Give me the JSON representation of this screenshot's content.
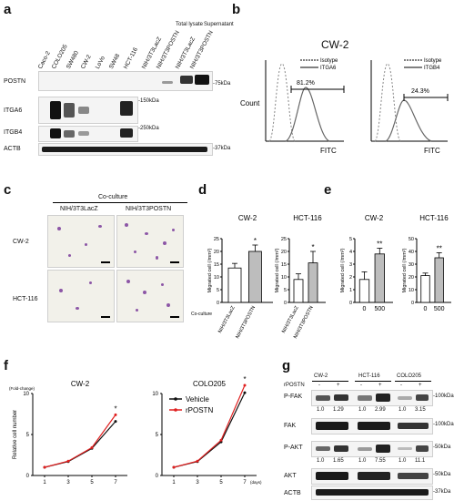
{
  "panels": {
    "a": "a",
    "b": "b",
    "c": "c",
    "d": "d",
    "e": "e",
    "f": "f",
    "g": "g"
  },
  "panel_a": {
    "lanes": [
      "Caco-2",
      "COLO205",
      "SW480",
      "CW-2",
      "LoVo",
      "SW48",
      "HCT-116",
      "NIH/3T3LacZ",
      "NIH/3T3POSTN",
      "NIH/3T3LacZ",
      "NIH/3T3POSTN"
    ],
    "group_labels": [
      "Total lysate",
      "Supernatant"
    ],
    "rows": [
      "POSTN",
      "ITGA6",
      "ITGB4",
      "ACTB"
    ],
    "markers": [
      "-75kDa",
      "-150kDa",
      "-250kDa",
      "-37kDa"
    ]
  },
  "panel_b": {
    "title": "CW-2",
    "ylabel": "Count",
    "xlabel": "FITC",
    "plots": [
      {
        "legend": [
          "Isotype",
          "ITGA6"
        ],
        "gate_pct": "81.2%"
      },
      {
        "legend": [
          "Isotype",
          "ITGB4"
        ],
        "gate_pct": "24.3%"
      }
    ]
  },
  "panel_c": {
    "header": "Co-culture",
    "cols": [
      "NIH/3T3LacZ",
      "NIH/3T3POSTN"
    ],
    "rows": [
      "CW-2",
      "HCT-116"
    ]
  },
  "chart_data": [
    {
      "type": "bar",
      "panel": "d",
      "title": "CW-2",
      "ylabel": "Migrated cell (/mm²)",
      "categories": [
        "NIH/3T3LacZ",
        "NIH/3T3POSTN"
      ],
      "values": [
        13.5,
        20
      ],
      "errors": [
        1.8,
        2.5
      ],
      "ylim": [
        0,
        25
      ],
      "yticks": [
        0,
        5,
        10,
        15,
        20,
        25
      ],
      "sig": "*",
      "x_group_label": "Co-culture"
    },
    {
      "type": "bar",
      "panel": "d",
      "title": "HCT-116",
      "ylabel": "Migrated cell (/mm²)",
      "categories": [
        "NIH/3T3LacZ",
        "NIH/3T3POSTN"
      ],
      "values": [
        9,
        15.5
      ],
      "errors": [
        2.2,
        4.5
      ],
      "ylim": [
        0,
        25
      ],
      "yticks": [
        0,
        5,
        10,
        15,
        20,
        25
      ],
      "sig": "*"
    },
    {
      "type": "bar",
      "panel": "e",
      "title": "CW-2",
      "ylabel": "Migrated cell (/mm²)",
      "categories": [
        "0",
        "500"
      ],
      "values": [
        1.8,
        3.8
      ],
      "errors": [
        0.6,
        0.45
      ],
      "ylim": [
        0,
        5
      ],
      "yticks": [
        0,
        1,
        2,
        3,
        4,
        5
      ],
      "sig": "**"
    },
    {
      "type": "bar",
      "panel": "e",
      "title": "HCT-116",
      "ylabel": "Migrated cell (/mm²)",
      "categories": [
        "0",
        "500"
      ],
      "values": [
        21,
        35
      ],
      "errors": [
        2,
        4
      ],
      "ylim": [
        0,
        50
      ],
      "yticks": [
        0,
        10,
        20,
        30,
        40,
        50
      ],
      "sig": "**"
    },
    {
      "type": "line",
      "panel": "f",
      "title": "CW-2",
      "ylabel": "Relative cell number",
      "yunit": "(Fold-change)",
      "x": [
        1,
        3,
        5,
        7
      ],
      "xticks": [
        1,
        3,
        5,
        7
      ],
      "ylim": [
        0,
        10
      ],
      "yticks": [
        0,
        5,
        10
      ],
      "series": [
        {
          "name": "Vehicle",
          "color": "#111111",
          "values": [
            1,
            1.7,
            3.3,
            6.6
          ]
        },
        {
          "name": "rPOSTN",
          "color": "#e02020",
          "values": [
            1,
            1.75,
            3.4,
            7.4
          ]
        }
      ],
      "sig": "*"
    },
    {
      "type": "line",
      "panel": "f",
      "title": "COLO205",
      "x": [
        1,
        3,
        5,
        7
      ],
      "xticks": [
        1,
        3,
        5,
        7
      ],
      "xunit": "(days)",
      "ylim": [
        0,
        10
      ],
      "yticks": [
        0,
        5,
        10
      ],
      "series": [
        {
          "name": "Vehicle",
          "color": "#111111",
          "values": [
            1,
            1.7,
            4.1,
            10.1
          ]
        },
        {
          "name": "rPOSTN",
          "color": "#e02020",
          "values": [
            1,
            1.75,
            4.3,
            11.0
          ]
        }
      ],
      "sig": "*",
      "legend": "top-left"
    }
  ],
  "panel_g": {
    "groups": [
      "CW-2",
      "HCT-116",
      "COLO205"
    ],
    "rposn_label": "rPOSTN",
    "signs": [
      "-",
      "+",
      "-",
      "+",
      "-",
      "+"
    ],
    "rows": [
      {
        "name": "P-FAK",
        "marker": "-100kDa",
        "ratios": [
          "1.0",
          "1.29",
          "1.0",
          "2.99",
          "1.0",
          "3.15"
        ]
      },
      {
        "name": "FAK",
        "marker": "-100kDa"
      },
      {
        "name": "P-AKT",
        "marker": "-50kDa",
        "ratios": [
          "1.0",
          "1.65",
          "1.0",
          "7.55",
          "1.0",
          "11.1"
        ]
      },
      {
        "name": "AKT",
        "marker": "-50kDa"
      },
      {
        "name": "ACTB",
        "marker": "-37kDa"
      }
    ]
  }
}
